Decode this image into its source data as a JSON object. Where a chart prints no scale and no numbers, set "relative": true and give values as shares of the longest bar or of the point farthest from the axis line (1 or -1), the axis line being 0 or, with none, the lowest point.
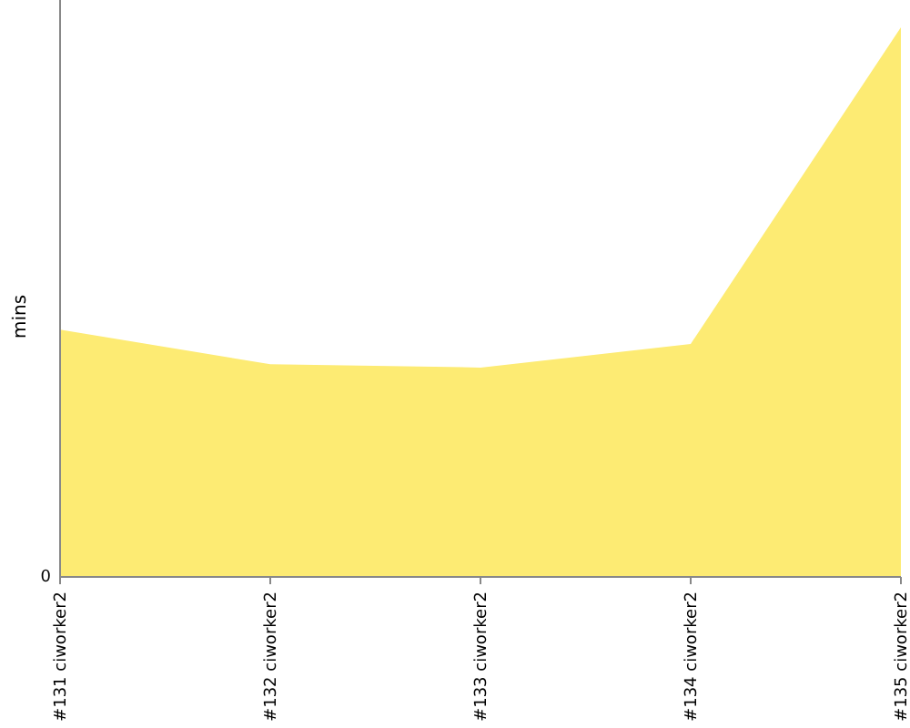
{
  "chart_data": {
    "type": "area",
    "ylabel": "mins",
    "relative": true,
    "categories": [
      "#131 ciworker2",
      "#132 ciworker2",
      "#133 ciworker2",
      "#134 ciworker2",
      "#135 ciworker2"
    ],
    "series": [
      {
        "color": "#fdeb73",
        "values": [
          0.45,
          0.387,
          0.381,
          0.424,
          1
        ]
      }
    ],
    "annotations": [
      "0"
    ]
  }
}
